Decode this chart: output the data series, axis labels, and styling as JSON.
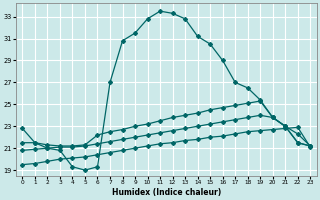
{
  "xlabel": "Humidex (Indice chaleur)",
  "bg_color": "#cce9e9",
  "grid_color": "#ffffff",
  "line_color": "#006666",
  "xlim": [
    -0.5,
    23.5
  ],
  "ylim": [
    18.5,
    34.2
  ],
  "xticks": [
    0,
    1,
    2,
    3,
    4,
    5,
    6,
    7,
    8,
    9,
    10,
    11,
    12,
    13,
    14,
    15,
    16,
    17,
    18,
    19,
    20,
    21,
    22,
    23
  ],
  "yticks": [
    19,
    21,
    23,
    25,
    27,
    29,
    31,
    33
  ],
  "curve1_x": [
    0,
    1,
    2,
    3,
    4,
    5,
    6,
    7,
    8,
    9,
    10,
    11,
    12,
    13,
    14,
    15,
    16,
    17,
    18,
    19,
    20,
    21,
    22,
    23
  ],
  "curve1_y": [
    22.8,
    21.5,
    21.0,
    20.8,
    19.3,
    19.0,
    19.3,
    27.0,
    30.8,
    31.5,
    32.8,
    33.5,
    33.3,
    32.8,
    31.2,
    30.5,
    29.0,
    27.0,
    26.5,
    25.4,
    23.8,
    23.0,
    22.3,
    21.2
  ],
  "curve2_x": [
    0,
    1,
    2,
    3,
    4,
    5,
    6,
    7,
    8,
    9,
    10,
    11,
    12,
    13,
    14,
    15,
    16,
    17,
    18,
    19,
    20,
    21,
    22,
    23
  ],
  "curve2_y": [
    21.5,
    21.5,
    21.3,
    21.2,
    21.2,
    21.3,
    22.2,
    22.5,
    22.7,
    23.0,
    23.2,
    23.5,
    23.8,
    24.0,
    24.2,
    24.5,
    24.7,
    24.9,
    25.1,
    25.3,
    23.8,
    23.0,
    21.5,
    21.2
  ],
  "curve3_x": [
    0,
    1,
    2,
    3,
    4,
    5,
    6,
    7,
    8,
    9,
    10,
    11,
    12,
    13,
    14,
    15,
    16,
    17,
    18,
    19,
    20,
    21,
    22,
    23
  ],
  "curve3_y": [
    20.8,
    20.9,
    21.0,
    21.1,
    21.1,
    21.2,
    21.4,
    21.6,
    21.8,
    22.0,
    22.2,
    22.4,
    22.6,
    22.8,
    23.0,
    23.2,
    23.4,
    23.6,
    23.8,
    24.0,
    23.8,
    23.0,
    21.5,
    21.2
  ],
  "curve4_x": [
    0,
    1,
    2,
    3,
    4,
    5,
    6,
    7,
    8,
    9,
    10,
    11,
    12,
    13,
    14,
    15,
    16,
    17,
    18,
    19,
    20,
    21,
    22,
    23
  ],
  "curve4_y": [
    19.5,
    19.6,
    19.8,
    20.0,
    20.1,
    20.2,
    20.4,
    20.6,
    20.8,
    21.0,
    21.2,
    21.4,
    21.5,
    21.7,
    21.8,
    22.0,
    22.1,
    22.3,
    22.5,
    22.6,
    22.7,
    22.8,
    22.9,
    21.1
  ]
}
